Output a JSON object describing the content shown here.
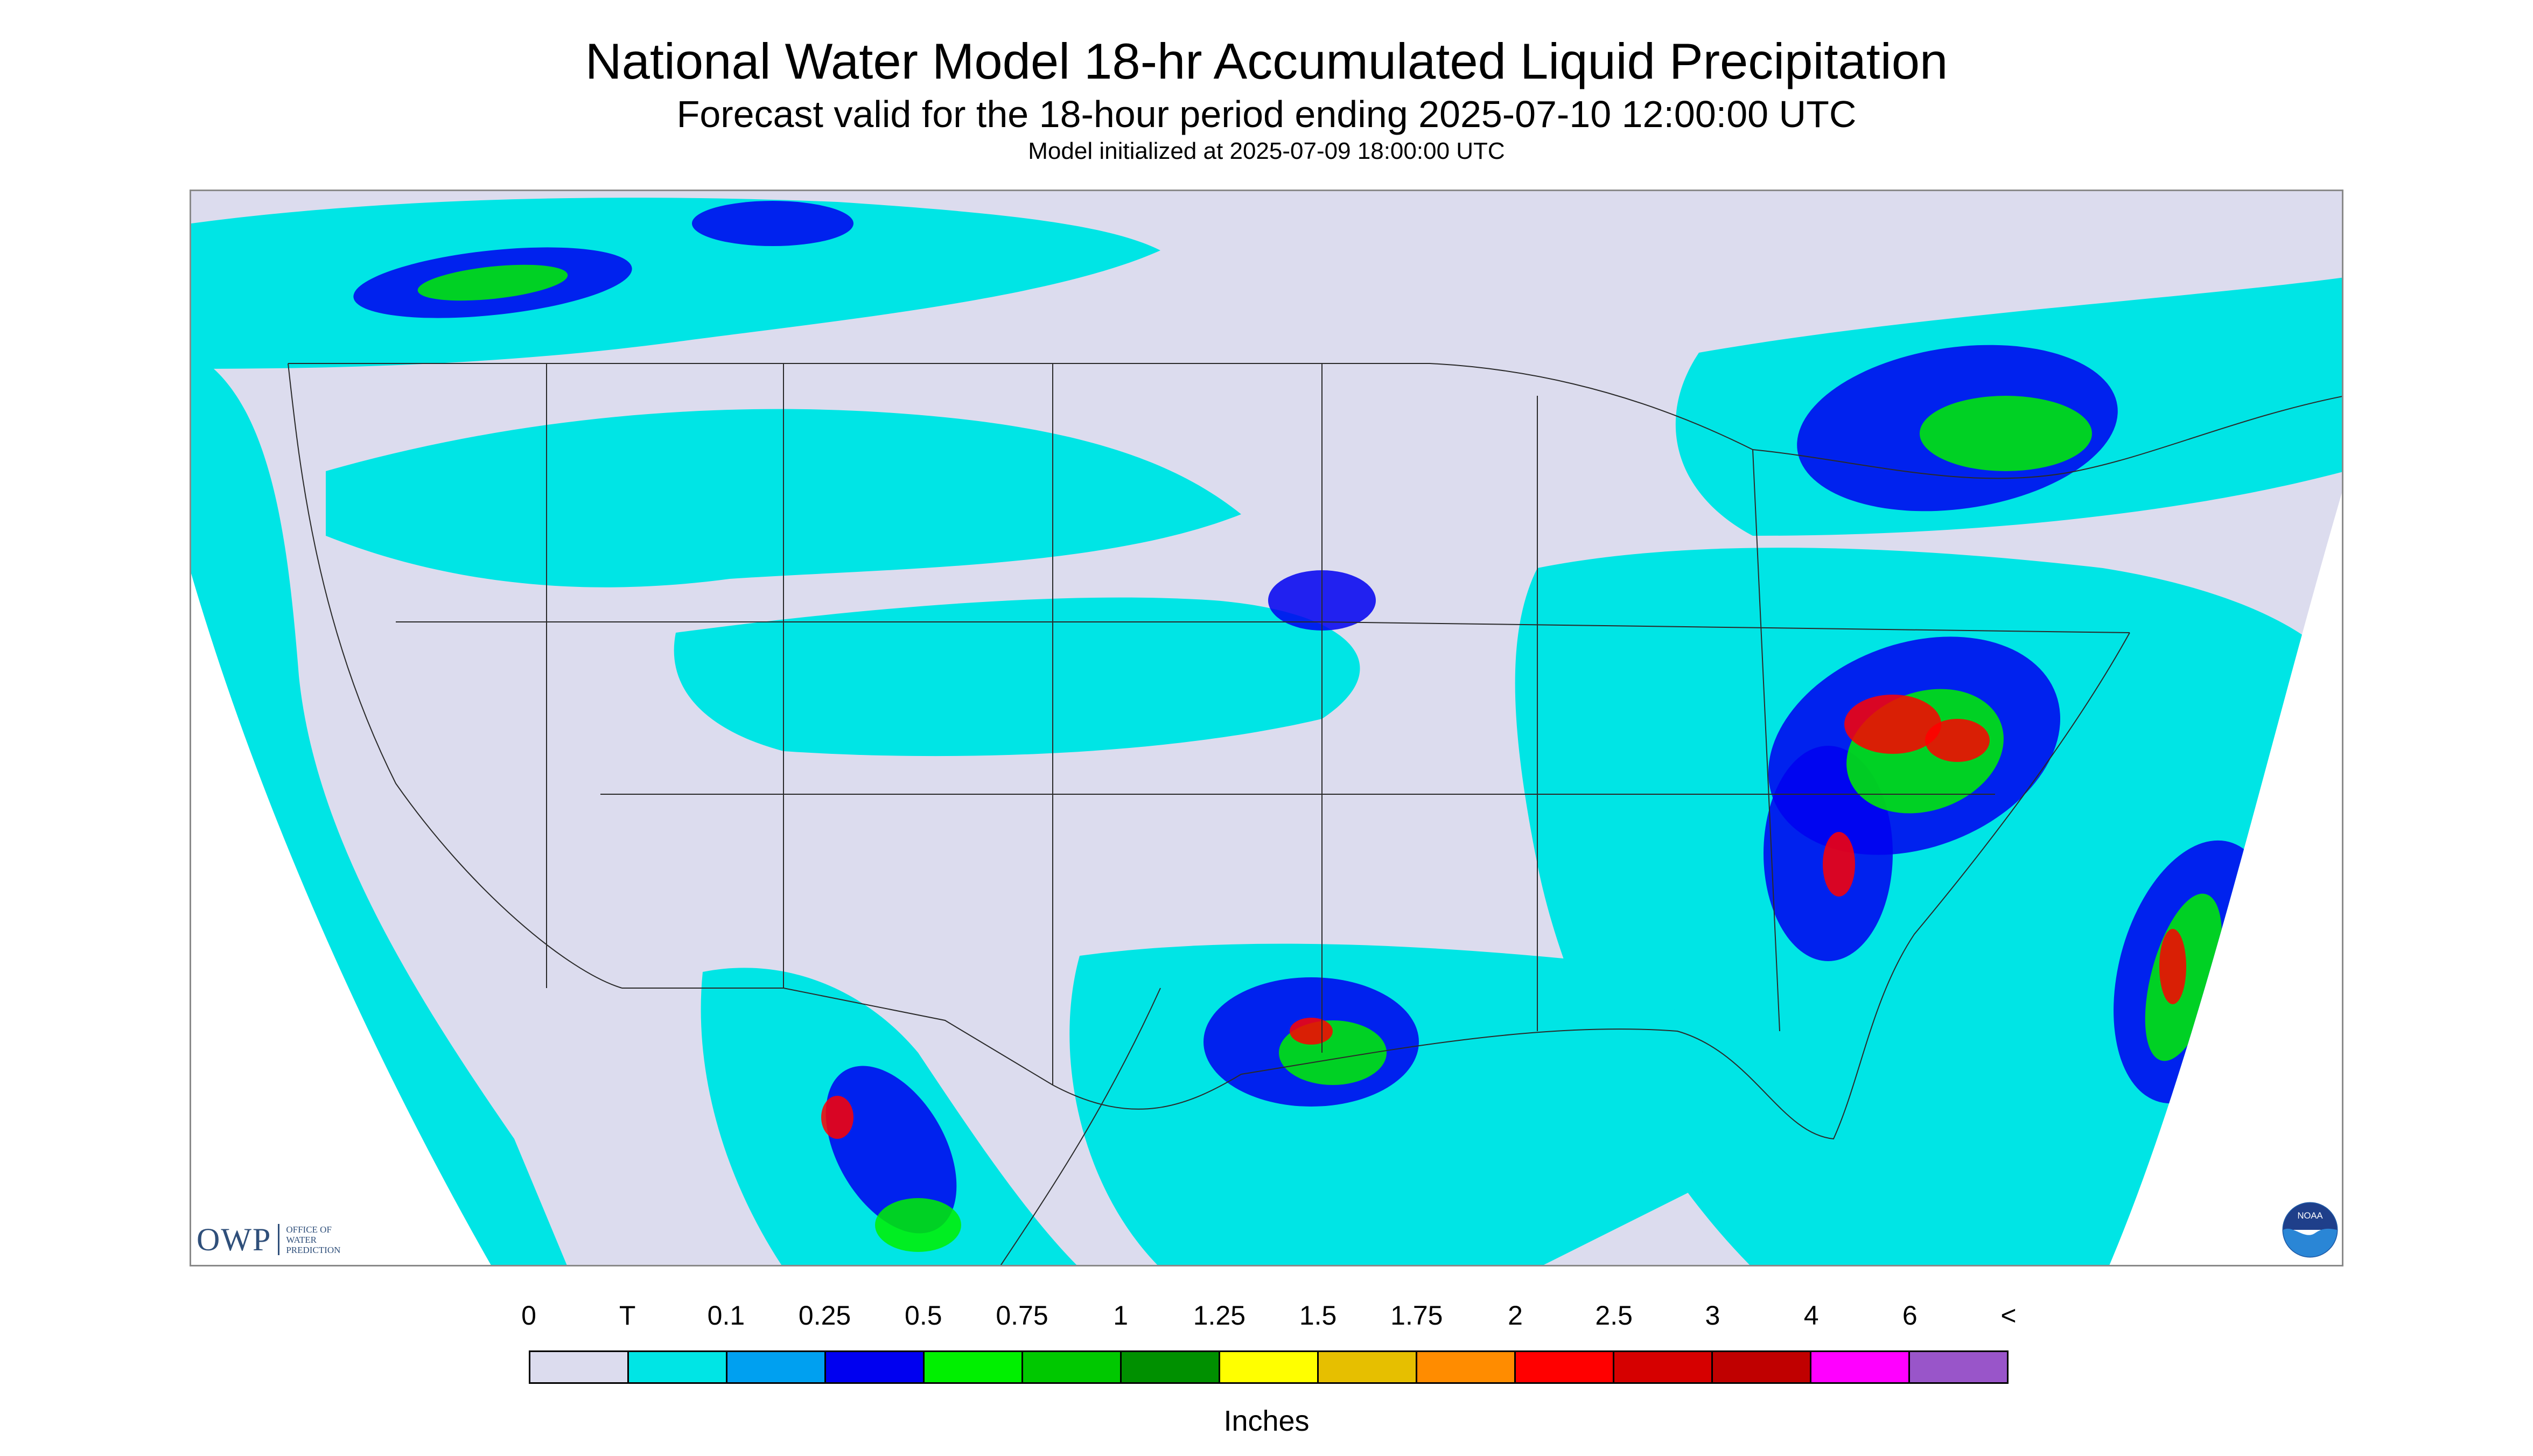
{
  "title": {
    "main": "National Water Model 18-hr Accumulated Liquid Precipitation",
    "subtitle": "Forecast valid for the 18-hour period ending 2025-07-10 12:00:00 UTC",
    "initialized": "Model initialized at 2025-07-09 18:00:00 UTC"
  },
  "map": {
    "background_color": "#dcdcee",
    "coverage_color": "#00e5e5",
    "border_color": "#2a2a2a",
    "regions": [
      "pacific-northwest",
      "northern-plains",
      "great-lakes",
      "ohio-valley",
      "mid-atlantic",
      "gulf-coast",
      "southeast",
      "western-mexico",
      "western-atlantic"
    ]
  },
  "logos": {
    "owp": {
      "letters": "OWP",
      "line1": "OFFICE OF",
      "line2": "WATER",
      "line3": "PREDICTION"
    },
    "noaa": {
      "label": "NOAA"
    }
  },
  "legend": {
    "labels": [
      "0",
      "T",
      "0.1",
      "0.25",
      "0.5",
      "0.75",
      "1",
      "1.25",
      "1.5",
      "1.75",
      "2",
      "2.5",
      "3",
      "4",
      "6",
      "<"
    ],
    "colors": [
      "#dcdcee",
      "#00e5e5",
      "#00a0f0",
      "#0000f0",
      "#00f000",
      "#00c800",
      "#009000",
      "#ffff00",
      "#e6bf00",
      "#ff8c00",
      "#ff0000",
      "#d60000",
      "#c00000",
      "#ff00ff",
      "#9955c9"
    ],
    "unit": "Inches"
  }
}
